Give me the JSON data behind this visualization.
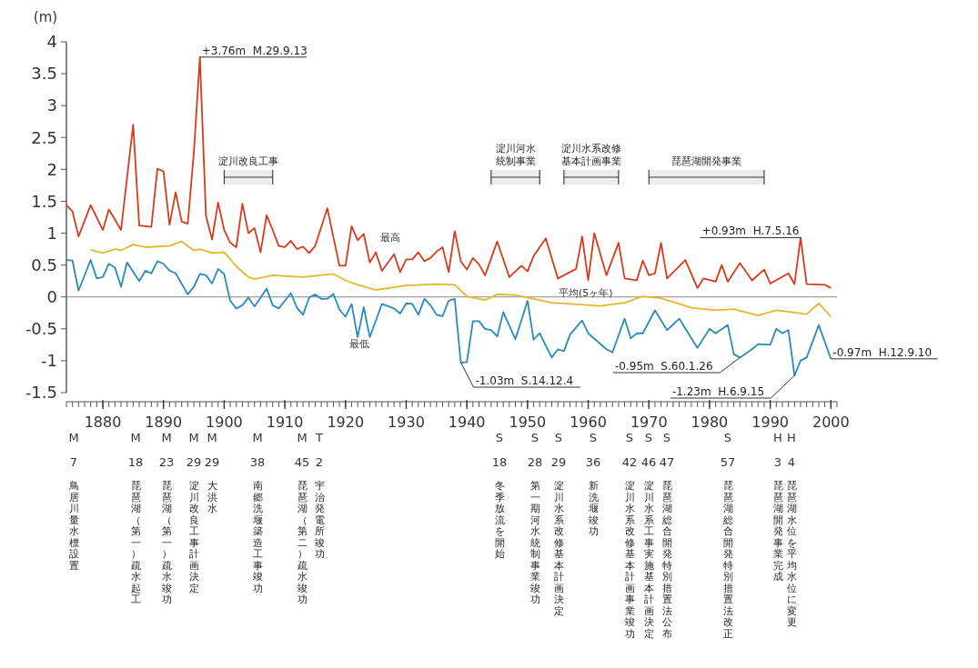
{
  "chart_data": {
    "type": "line",
    "ylabel": "(m)",
    "xlim": [
      1874,
      2001
    ],
    "xticks": [
      1880,
      1890,
      1900,
      1910,
      1920,
      1930,
      1940,
      1950,
      1960,
      1970,
      1980,
      1990,
      2000
    ],
    "ylim": [
      -1.5,
      4
    ],
    "yticks": [
      -1.5,
      -1,
      -0.5,
      0,
      0.5,
      1,
      1.5,
      2,
      2.5,
      3,
      3.5,
      4
    ],
    "grid": false,
    "marker": "none",
    "line_style": "solid",
    "series": [
      {
        "name": "最高",
        "color": "#d83a1c",
        "x": [
          1874,
          1875,
          1876,
          1878,
          1880,
          1881,
          1883,
          1885,
          1886,
          1888,
          1889,
          1890,
          1891,
          1892,
          1893,
          1894,
          1895,
          1896,
          1897,
          1898,
          1899,
          1900,
          1901,
          1902,
          1903,
          1904,
          1905,
          1906,
          1907,
          1908,
          1909,
          1910,
          1911,
          1912,
          1913,
          1914,
          1915,
          1917,
          1919,
          1920,
          1921,
          1922,
          1923,
          1924,
          1925,
          1926,
          1928,
          1929,
          1930,
          1931,
          1932,
          1933,
          1934,
          1935,
          1936,
          1937,
          1938,
          1939,
          1940,
          1941,
          1942,
          1943,
          1945,
          1947,
          1949,
          1950,
          1951,
          1953,
          1955,
          1958,
          1959,
          1960,
          1961,
          1963,
          1965,
          1966,
          1968,
          1969,
          1970,
          1971,
          1972,
          1973,
          1976,
          1978,
          1979,
          1981,
          1982,
          1983,
          1985,
          1987,
          1989,
          1990,
          1993,
          1994,
          1995,
          1996,
          1999,
          2000
        ],
        "values": [
          1.44,
          1.34,
          0.95,
          1.44,
          1.05,
          1.37,
          1.05,
          2.7,
          1.12,
          1.1,
          2.01,
          1.97,
          1.13,
          1.64,
          1.18,
          1.15,
          2.26,
          3.76,
          1.27,
          0.9,
          1.48,
          1.05,
          0.85,
          0.78,
          1.46,
          1.0,
          1.08,
          0.7,
          1.28,
          1.05,
          0.8,
          0.78,
          0.88,
          0.75,
          0.79,
          0.69,
          0.8,
          1.39,
          0.49,
          0.49,
          1.11,
          0.89,
          0.99,
          0.54,
          0.7,
          0.41,
          0.67,
          0.39,
          0.59,
          0.59,
          0.7,
          0.56,
          0.61,
          0.71,
          0.78,
          0.39,
          1.03,
          0.56,
          0.43,
          0.61,
          0.51,
          0.34,
          0.87,
          0.31,
          0.49,
          0.4,
          0.64,
          0.92,
          0.29,
          0.44,
          0.95,
          0.26,
          1.0,
          0.34,
          0.85,
          0.29,
          0.26,
          0.57,
          0.34,
          0.37,
          0.85,
          0.29,
          0.58,
          0.14,
          0.29,
          0.24,
          0.5,
          0.24,
          0.53,
          0.26,
          0.43,
          0.21,
          0.37,
          0.2,
          0.93,
          0.2,
          0.19,
          0.14
        ]
      },
      {
        "name": "平均(5ヶ年)",
        "color": "#e6b52e",
        "x": [
          1878,
          1880,
          1882,
          1883,
          1885,
          1887,
          1891,
          1893,
          1895,
          1896,
          1898,
          1900,
          1902,
          1904,
          1905,
          1908,
          1913,
          1918,
          1920,
          1922,
          1925,
          1930,
          1935,
          1938,
          1940,
          1943,
          1945,
          1948,
          1950,
          1954,
          1957,
          1962,
          1966,
          1969,
          1972,
          1977,
          1981,
          1984,
          1988,
          1991,
          1996,
          1998,
          2000
        ],
        "values": [
          0.74,
          0.69,
          0.75,
          0.73,
          0.82,
          0.78,
          0.8,
          0.87,
          0.73,
          0.75,
          0.69,
          0.7,
          0.48,
          0.31,
          0.28,
          0.34,
          0.31,
          0.36,
          0.26,
          0.19,
          0.11,
          0.18,
          0.2,
          0.19,
          0.01,
          -0.05,
          0.04,
          0.03,
          -0.01,
          -0.09,
          -0.11,
          -0.14,
          -0.09,
          0.01,
          -0.02,
          -0.17,
          -0.21,
          -0.19,
          -0.29,
          -0.21,
          -0.27,
          -0.1,
          -0.31
        ]
      },
      {
        "name": "最低",
        "color": "#2a8bbb",
        "x": [
          1874,
          1875,
          1876,
          1878,
          1879,
          1880,
          1881,
          1882,
          1883,
          1884,
          1886,
          1887,
          1888,
          1889,
          1890,
          1891,
          1892,
          1894,
          1895,
          1896,
          1897,
          1898,
          1899,
          1900,
          1901,
          1902,
          1903,
          1904,
          1905,
          1906,
          1907,
          1908,
          1909,
          1911,
          1912,
          1913,
          1914,
          1915,
          1916,
          1917,
          1918,
          1919,
          1920,
          1921,
          1922,
          1923,
          1924,
          1926,
          1928,
          1929,
          1930,
          1931,
          1932,
          1933,
          1934,
          1935,
          1936,
          1937,
          1938,
          1939,
          1940,
          1941,
          1942,
          1943,
          1944,
          1945,
          1946,
          1948,
          1950,
          1951,
          1952,
          1954,
          1955,
          1956,
          1957,
          1959,
          1960,
          1963,
          1964,
          1966,
          1967,
          1968,
          1969,
          1971,
          1973,
          1975,
          1978,
          1980,
          1981,
          1983,
          1984,
          1985,
          1987,
          1988,
          1990,
          1991,
          1992,
          1993,
          1994,
          1995,
          1996,
          1998,
          2000
        ],
        "values": [
          0.58,
          0.57,
          0.1,
          0.58,
          0.29,
          0.31,
          0.52,
          0.46,
          0.16,
          0.54,
          0.25,
          0.41,
          0.37,
          0.56,
          0.52,
          0.41,
          0.37,
          0.04,
          0.16,
          0.36,
          0.34,
          0.21,
          0.44,
          0.36,
          -0.06,
          -0.18,
          -0.13,
          -0.01,
          -0.15,
          -0.01,
          0.13,
          -0.13,
          -0.18,
          0.06,
          -0.17,
          -0.28,
          -0.01,
          0.04,
          -0.03,
          -0.03,
          0.05,
          -0.2,
          -0.31,
          -0.11,
          -0.63,
          -0.16,
          -0.63,
          -0.11,
          -0.18,
          -0.26,
          -0.1,
          -0.11,
          -0.28,
          -0.03,
          -0.13,
          -0.28,
          -0.3,
          -0.06,
          -0.03,
          -1.03,
          -1.02,
          -0.38,
          -0.38,
          -0.5,
          -0.52,
          -0.62,
          -0.24,
          -0.66,
          -0.06,
          -0.67,
          -0.57,
          -0.95,
          -0.82,
          -0.85,
          -0.59,
          -0.37,
          -0.57,
          -0.82,
          -0.87,
          -0.34,
          -0.65,
          -0.57,
          -0.57,
          -0.21,
          -0.52,
          -0.34,
          -0.8,
          -0.5,
          -0.57,
          -0.44,
          -0.9,
          -0.95,
          -0.82,
          -0.74,
          -0.75,
          -0.5,
          -0.57,
          -0.52,
          -1.23,
          -1.0,
          -0.95,
          -0.44,
          -0.97
        ]
      }
    ],
    "ref_lines": [
      {
        "axis": "y",
        "value": 0,
        "color": "#8a8a8a"
      }
    ],
    "bands": [
      {
        "axis": "x",
        "from": 1900,
        "to": 1908,
        "label": "淀川改良工事"
      },
      {
        "axis": "x",
        "from": 1944,
        "to": 1952,
        "label": "淀川河水統制事業"
      },
      {
        "axis": "x",
        "from": 1956,
        "to": 1965,
        "label": "淀川水系改修基本計画事業"
      },
      {
        "axis": "x",
        "from": 1970,
        "to": 1989,
        "label": "琵琶湖開発事業"
      }
    ],
    "annotations": [
      {
        "text": "+3.76m  M.29.9.13",
        "x": 1896,
        "y": 3.76
      },
      {
        "text": "+0.93m  H.7.5.16",
        "x": 1995,
        "y": 0.93
      },
      {
        "text": "-1.03m  S.14.12.4",
        "x": 1939,
        "y": -1.03
      },
      {
        "text": "-0.95m  S.60.1.26",
        "x": 1985,
        "y": -0.95
      },
      {
        "text": "-1.23m  H.6.9.15",
        "x": 1994,
        "y": -1.23
      },
      {
        "text": "-0.97m  H.12.9.10",
        "x": 2000,
        "y": -0.97
      },
      "M\n7\n鳥居川量水標設置",
      "M\n18\n琵琶湖（第一）疏水起工",
      "M\n23\n琵琶湖（第一）疏水竣功",
      "M\n29\n淀川改良工事計画決定",
      "M\n29\n大洪水",
      "M\n38\n南郷洗堰築造工事竣功",
      "M\n45\n琵琶湖（第二）疏水竣功",
      "T\n2\n宇治発電所竣功",
      "S\n18\n冬季放流を開始",
      "S\n28\n第一期河水統制事業竣功",
      "S\n29\n淀川水系改修基本計画決定",
      "S\n36\n新洗堰竣功",
      "S\n42\n淀川水系改修基本計画事業竣功",
      "S\n46\n淀川水系工事実施基本計画決定",
      "S\n47\n琵琶湖総合開発特別措置法公布",
      "S\n57\n琵琶湖総合開発特別措置法改正",
      "H\n3\n琵琶湖開発事業完成",
      "H\n4\n琵琶湖水位を平均水位に変更"
    ]
  }
}
